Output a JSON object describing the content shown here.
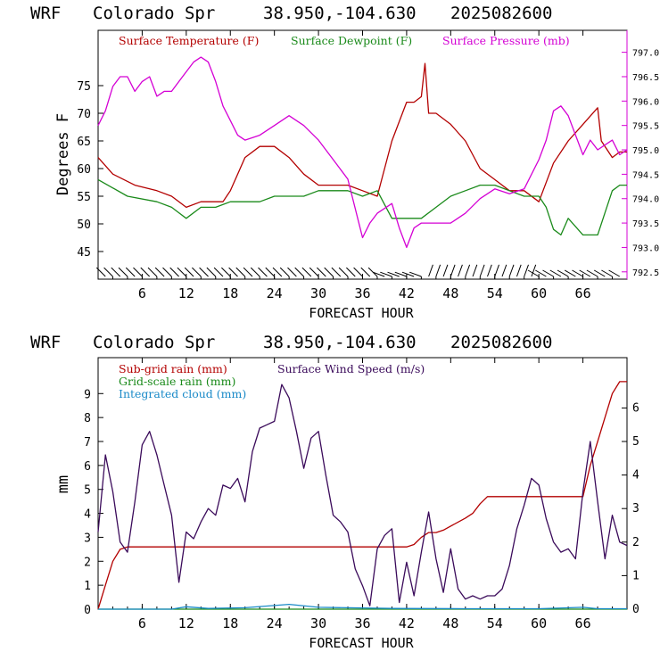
{
  "chart_data": [
    {
      "type": "line",
      "header": {
        "model": "WRF",
        "station": "Colorado Spr",
        "coords": "38.950,-104.630",
        "init": "2025082600"
      },
      "xlabel": "FORECAST HOUR",
      "ylabel": "Degrees F",
      "xlim": [
        0,
        72
      ],
      "ylim": [
        40,
        85
      ],
      "y2lim": [
        792.35,
        797.45
      ],
      "xticks": [
        "6",
        "12",
        "18",
        "24",
        "30",
        "36",
        "42",
        "48",
        "54",
        "60",
        "66"
      ],
      "yticks": [
        "45",
        "50",
        "55",
        "60",
        "65",
        "70",
        "75"
      ],
      "y2ticks": [
        "792.5",
        "793.0",
        "793.5",
        "794.0",
        "794.5",
        "795.0",
        "795.5",
        "796.0",
        "796.5",
        "797.0"
      ],
      "legend_placement": "top",
      "series": [
        {
          "name": "Surface Temperature (F)",
          "axis": "left",
          "color": "#b30000",
          "x": [
            0,
            2,
            5,
            8,
            10,
            12,
            14,
            17,
            18,
            19,
            20,
            22,
            24,
            26,
            28,
            30,
            32,
            34,
            36,
            38,
            40,
            42,
            43,
            44,
            44.5,
            45,
            46,
            48,
            50,
            52,
            54,
            56,
            58,
            60,
            62,
            64,
            66,
            68,
            68.5,
            70,
            71,
            72
          ],
          "y": [
            62,
            59,
            57,
            56,
            55,
            53,
            54,
            54,
            56,
            59,
            62,
            64,
            64,
            62,
            59,
            57,
            57,
            57,
            56,
            55,
            65,
            72,
            72,
            73,
            79,
            70,
            70,
            68,
            65,
            60,
            58,
            56,
            56,
            54,
            61,
            65,
            68,
            71,
            65,
            62,
            63,
            63
          ]
        },
        {
          "name": "Surface Dewpoint (F)",
          "axis": "left",
          "color": "#1a8a1a",
          "x": [
            0,
            4,
            8,
            10,
            11,
            12,
            14,
            16,
            18,
            20,
            22,
            24,
            26,
            28,
            30,
            32,
            34,
            36,
            38,
            40,
            42,
            44,
            46,
            48,
            50,
            52,
            54,
            56,
            58,
            60,
            61,
            62,
            63,
            64,
            66,
            67,
            68,
            69,
            70,
            71,
            72
          ],
          "y": [
            58,
            55,
            54,
            53,
            52,
            51,
            53,
            53,
            54,
            54,
            54,
            55,
            55,
            55,
            56,
            56,
            56,
            55,
            56,
            51,
            51,
            51,
            53,
            55,
            56,
            57,
            57,
            56,
            55,
            55,
            53,
            49,
            48,
            51,
            48,
            48,
            48,
            52,
            56,
            57,
            57
          ]
        },
        {
          "name": "Surface Pressure (mb)",
          "axis": "right",
          "color": "#d400d4",
          "x": [
            0,
            1,
            2,
            3,
            4,
            5,
            6,
            7,
            8,
            9,
            10,
            11,
            12,
            13,
            14,
            15,
            16,
            17,
            18,
            19,
            20,
            22,
            24,
            26,
            28,
            30,
            32,
            34,
            36,
            37,
            38,
            40,
            41,
            42,
            43,
            44,
            46,
            48,
            50,
            52,
            54,
            56,
            58,
            60,
            61,
            62,
            63,
            64,
            66,
            67,
            68,
            70,
            71,
            72
          ],
          "y": [
            795.5,
            795.8,
            796.3,
            796.5,
            796.5,
            796.2,
            796.4,
            796.5,
            796.1,
            796.2,
            796.2,
            796.4,
            796.6,
            796.8,
            796.9,
            796.8,
            796.4,
            795.9,
            795.6,
            795.3,
            795.2,
            795.3,
            795.5,
            795.7,
            795.5,
            795.2,
            794.8,
            794.4,
            793.2,
            793.5,
            793.7,
            793.9,
            793.4,
            793.0,
            793.4,
            793.5,
            793.5,
            793.5,
            793.7,
            794.0,
            794.2,
            794.1,
            794.2,
            794.8,
            795.2,
            795.8,
            795.9,
            795.7,
            794.9,
            795.2,
            795.0,
            795.2,
            794.9,
            795.0
          ]
        },
        {
          "name": "",
          "type": "wind-barbs",
          "color": "#000000"
        }
      ]
    },
    {
      "type": "line",
      "header": {
        "model": "WRF",
        "station": "Colorado Spr",
        "coords": "38.950,-104.630",
        "init": "2025082600"
      },
      "xlabel": "FORECAST HOUR",
      "ylabel": "mm",
      "xlim": [
        0,
        72
      ],
      "ylim": [
        0,
        10.5
      ],
      "y2lim": [
        0,
        7.5
      ],
      "xticks": [
        "6",
        "12",
        "18",
        "24",
        "30",
        "36",
        "42",
        "48",
        "54",
        "60",
        "66"
      ],
      "yticks": [
        "0",
        "1",
        "2",
        "3",
        "4",
        "5",
        "6",
        "7",
        "8",
        "9"
      ],
      "y2ticks": [
        "0",
        "1",
        "2",
        "3",
        "4",
        "5",
        "6"
      ],
      "legend_placement": "top-left",
      "series": [
        {
          "name": "Sub-grid rain (mm)",
          "axis": "left",
          "color": "#b30000",
          "x": [
            0,
            1,
            2,
            3,
            4,
            42,
            43,
            44,
            45,
            46,
            47,
            50,
            51,
            52,
            53,
            66,
            67,
            68,
            69,
            70,
            71,
            72
          ],
          "y": [
            0,
            1,
            2,
            2.5,
            2.6,
            2.6,
            2.7,
            3,
            3.2,
            3.2,
            3.3,
            3.8,
            4,
            4.4,
            4.7,
            4.7,
            6,
            7,
            8,
            9,
            9.5,
            9.5
          ]
        },
        {
          "name": "Grid-scale rain (mm)",
          "axis": "left",
          "color": "#1a8a1a",
          "x": [
            0,
            72
          ],
          "y": [
            0,
            0
          ]
        },
        {
          "name": "Integrated cloud (mm)",
          "axis": "left",
          "color": "#1a8ac8",
          "x": [
            0,
            10,
            12,
            15,
            20,
            26,
            30,
            40,
            50,
            60,
            66,
            68,
            72
          ],
          "y": [
            0,
            0,
            0.1,
            0.03,
            0.06,
            0.2,
            0.08,
            0.03,
            0.02,
            0.02,
            0.08,
            0.02,
            0.02
          ]
        },
        {
          "name": "Surface Wind Speed (m/s)",
          "axis": "right",
          "color": "#3a0a5a",
          "x": [
            0,
            1,
            2,
            3,
            4,
            5,
            6,
            7,
            8,
            9,
            10,
            11,
            12,
            13,
            14,
            15,
            16,
            17,
            18,
            19,
            20,
            21,
            22,
            23,
            24,
            25,
            26,
            27,
            28,
            29,
            30,
            31,
            32,
            33,
            34,
            35,
            36,
            37,
            38,
            39,
            40,
            41,
            42,
            43,
            44,
            45,
            46,
            47,
            48,
            49,
            50,
            51,
            52,
            53,
            54,
            55,
            56,
            57,
            58,
            59,
            60,
            61,
            62,
            63,
            64,
            65,
            66,
            67,
            68,
            69,
            70,
            71,
            72
          ],
          "x_unit": "hour",
          "y": [
            2.3,
            4.6,
            3.5,
            2.0,
            1.7,
            3.2,
            4.9,
            5.3,
            4.6,
            3.7,
            2.8,
            0.8,
            2.3,
            2.1,
            2.6,
            3.0,
            2.8,
            3.7,
            3.6,
            3.9,
            3.2,
            4.7,
            5.4,
            5.5,
            5.6,
            6.7,
            6.3,
            5.3,
            4.2,
            5.1,
            5.3,
            4.0,
            2.8,
            2.6,
            2.3,
            1.2,
            0.7,
            0.1,
            1.8,
            2.2,
            2.4,
            0.2,
            1.4,
            0.4,
            1.7,
            2.9,
            1.5,
            0.5,
            1.8,
            0.6,
            0.3,
            0.4,
            0.3,
            0.4,
            0.4,
            0.6,
            1.3,
            2.4,
            3.1,
            3.9,
            3.7,
            2.7,
            2.0,
            1.7,
            1.8,
            1.5,
            3.5,
            5.0,
            3.2,
            1.5,
            2.8,
            2.0,
            1.9
          ]
        }
      ]
    }
  ]
}
